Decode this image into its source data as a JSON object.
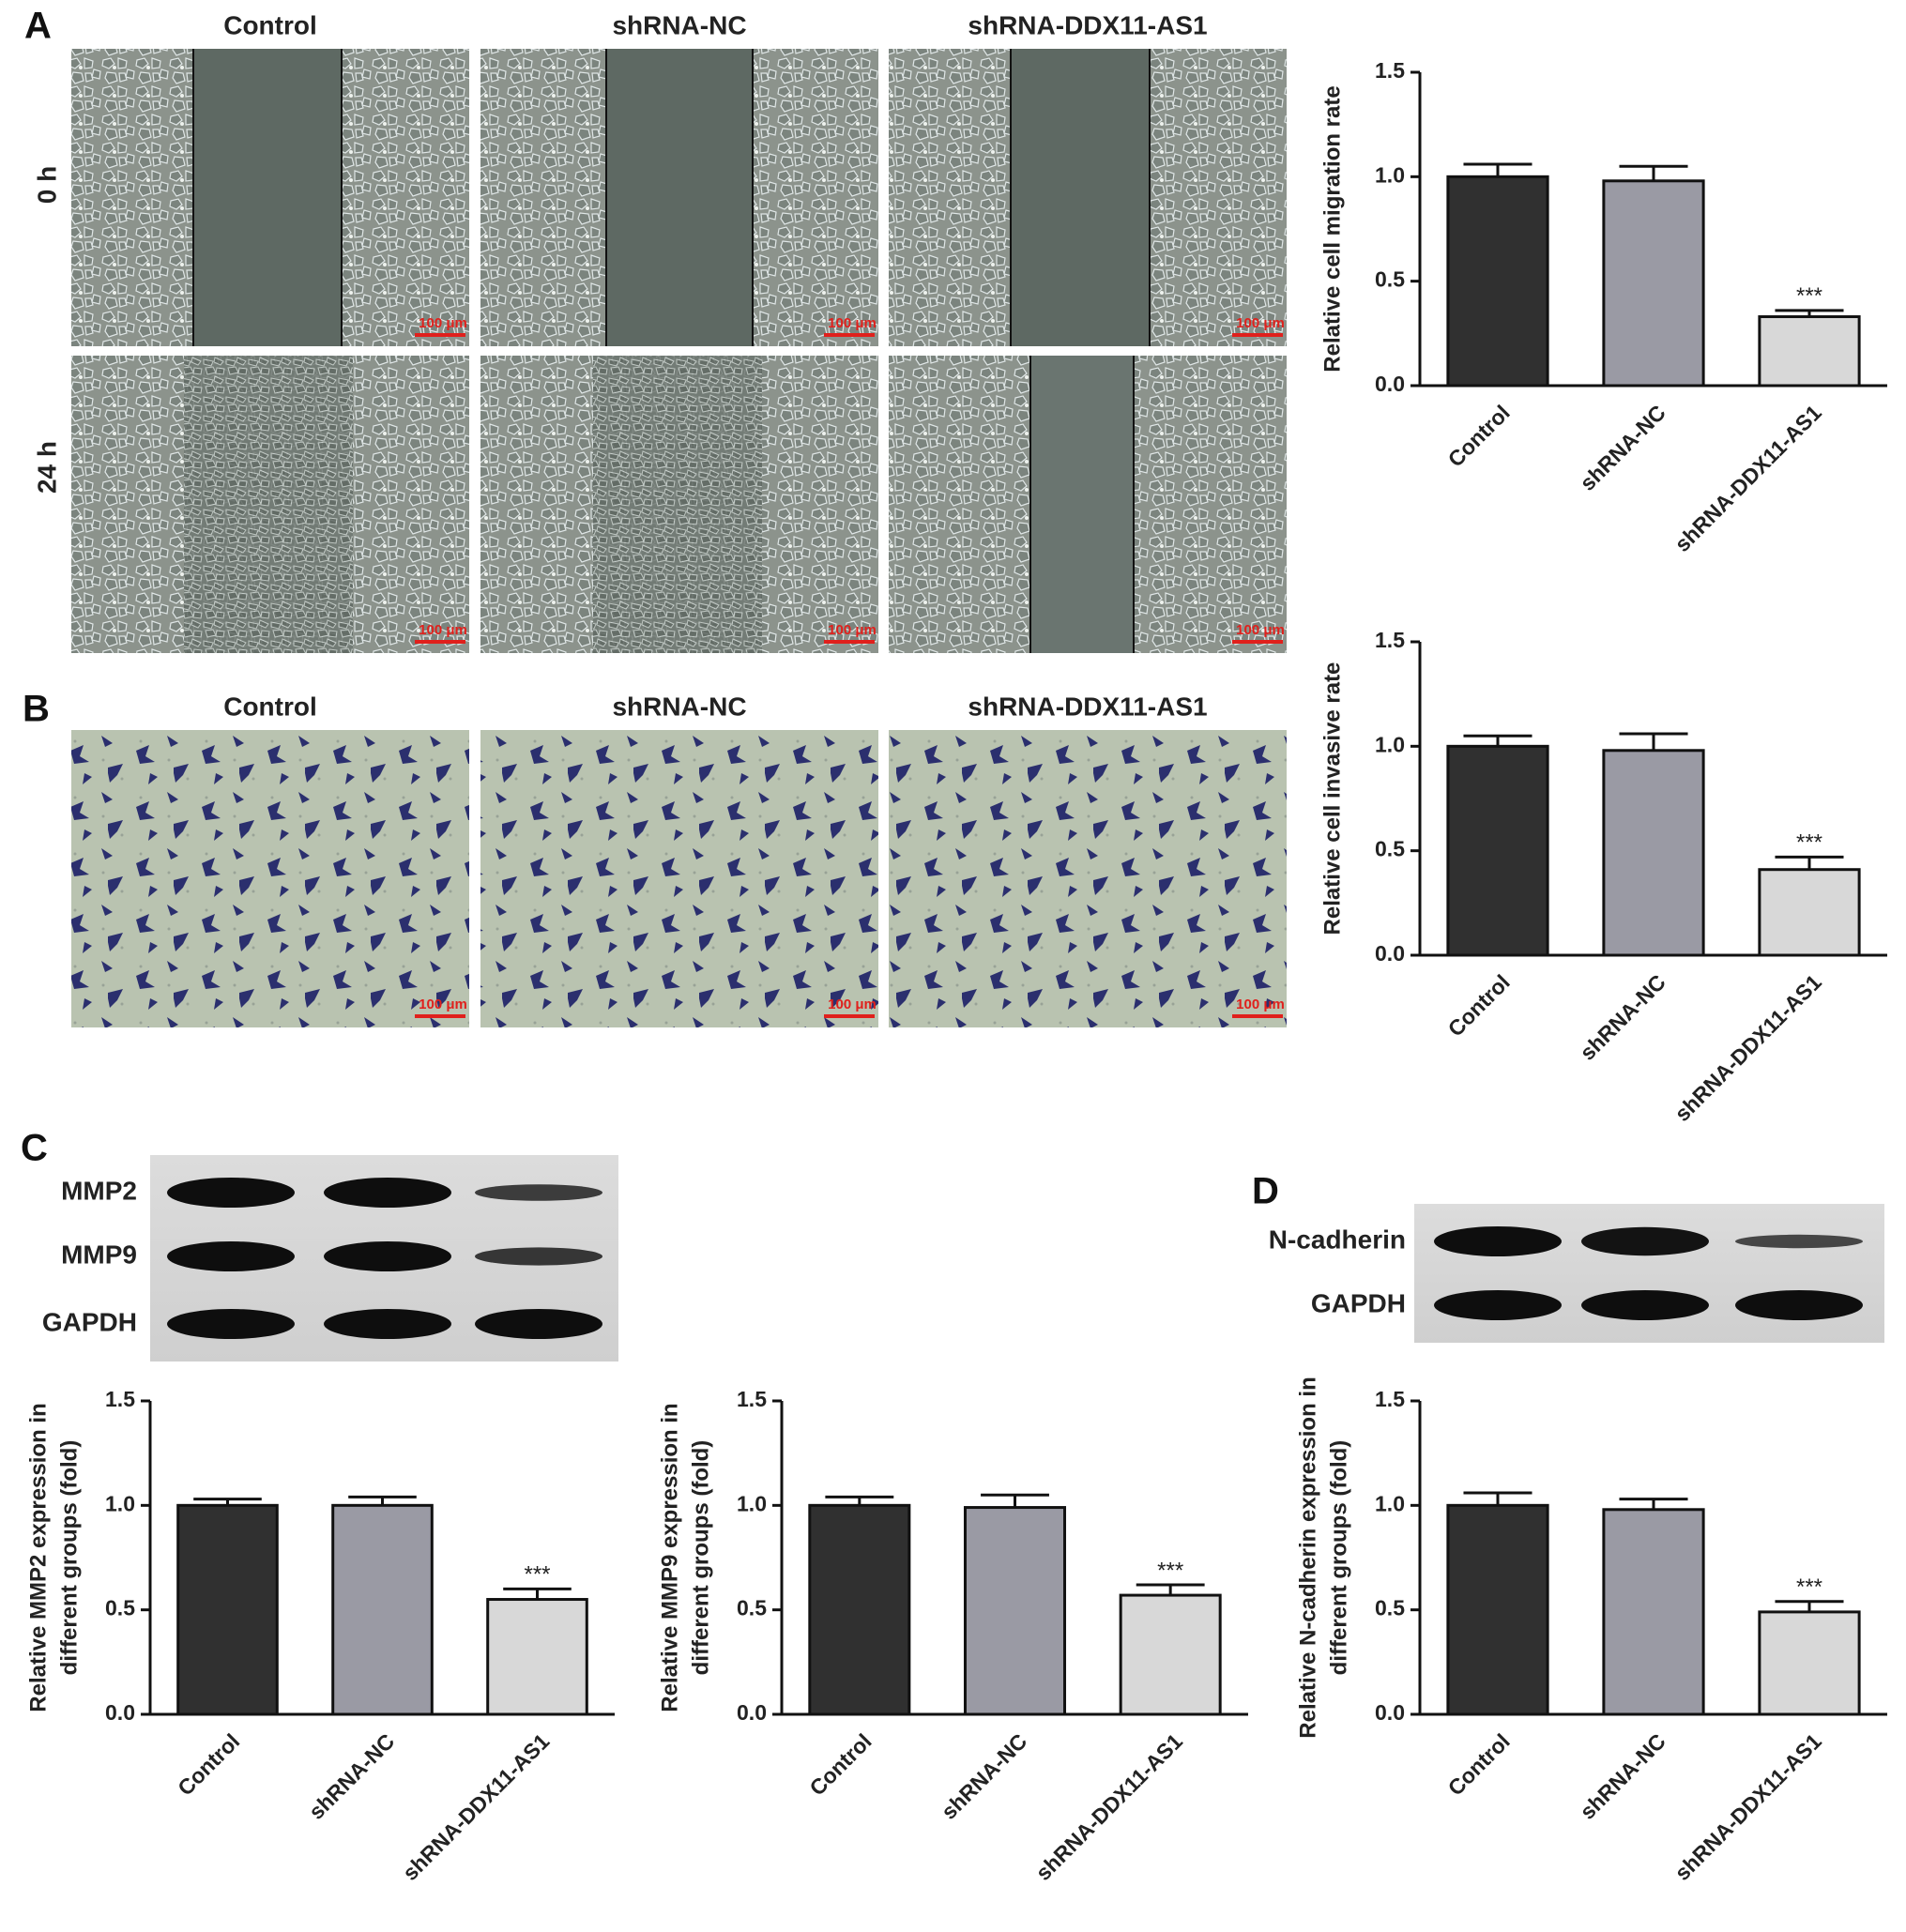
{
  "figure": {
    "panel_labels": [
      "A",
      "B",
      "C",
      "D"
    ],
    "conditions": [
      "Control",
      "shRNA-NC",
      "shRNA-DDX11-AS1"
    ],
    "time_labels": [
      "0 h",
      "24 h"
    ],
    "scale_bar": "100 μm",
    "blots_c": [
      "MMP2",
      "MMP9",
      "GAPDH"
    ],
    "blots_d": [
      "N-cadherin",
      "GAPDH"
    ]
  },
  "chart_data": [
    {
      "type": "bar",
      "ylabel": [
        "Relative cell migration rate"
      ],
      "categories": [
        "Control",
        "shRNA-NC",
        "shRNA-DDX11-AS1"
      ],
      "values": [
        1.0,
        0.98,
        0.33
      ],
      "errors": [
        0.06,
        0.07,
        0.03
      ],
      "colors": [
        "#303030",
        "#9a9aa4",
        "#d8d8d8"
      ],
      "annotations": [
        null,
        null,
        "***"
      ],
      "ylim": [
        0,
        1.5
      ],
      "yticks": [
        {
          "value": 0,
          "label": "0.0"
        },
        {
          "value": 0.5,
          "label": "0.5"
        },
        {
          "value": 1,
          "label": "1.0"
        },
        {
          "value": 1.5,
          "label": "1.5"
        }
      ]
    },
    {
      "type": "bar",
      "ylabel": [
        "Relative cell invasive rate"
      ],
      "categories": [
        "Control",
        "shRNA-NC",
        "shRNA-DDX11-AS1"
      ],
      "values": [
        1.0,
        0.98,
        0.41
      ],
      "errors": [
        0.05,
        0.08,
        0.06
      ],
      "colors": [
        "#303030",
        "#9a9aa4",
        "#d8d8d8"
      ],
      "annotations": [
        null,
        null,
        "***"
      ],
      "ylim": [
        0,
        1.5
      ],
      "yticks": [
        {
          "value": 0,
          "label": "0.0"
        },
        {
          "value": 0.5,
          "label": "0.5"
        },
        {
          "value": 1,
          "label": "1.0"
        },
        {
          "value": 1.5,
          "label": "1.5"
        }
      ]
    },
    {
      "type": "bar",
      "ylabel": [
        "Relative MMP2 expression in",
        "different groups (fold)"
      ],
      "categories": [
        "Control",
        "shRNA-NC",
        "shRNA-DDX11-AS1"
      ],
      "values": [
        1.0,
        1.0,
        0.55
      ],
      "errors": [
        0.03,
        0.04,
        0.05
      ],
      "colors": [
        "#303030",
        "#9a9aa4",
        "#d8d8d8"
      ],
      "annotations": [
        null,
        null,
        "***"
      ],
      "ylim": [
        0,
        1.5
      ],
      "yticks": [
        {
          "value": 0,
          "label": "0.0"
        },
        {
          "value": 0.5,
          "label": "0.5"
        },
        {
          "value": 1,
          "label": "1.0"
        },
        {
          "value": 1.5,
          "label": "1.5"
        }
      ]
    },
    {
      "type": "bar",
      "ylabel": [
        "Relative MMP9 expression in",
        "different groups (fold)"
      ],
      "categories": [
        "Control",
        "shRNA-NC",
        "shRNA-DDX11-AS1"
      ],
      "values": [
        1.0,
        0.99,
        0.57
      ],
      "errors": [
        0.04,
        0.06,
        0.05
      ],
      "colors": [
        "#303030",
        "#9a9aa4",
        "#d8d8d8"
      ],
      "annotations": [
        null,
        null,
        "***"
      ],
      "ylim": [
        0,
        1.5
      ],
      "yticks": [
        {
          "value": 0,
          "label": "0.0"
        },
        {
          "value": 0.5,
          "label": "0.5"
        },
        {
          "value": 1,
          "label": "1.0"
        },
        {
          "value": 1.5,
          "label": "1.5"
        }
      ]
    },
    {
      "type": "bar",
      "ylabel": [
        "Relative N-cadherin expression in",
        "different groups (fold)"
      ],
      "categories": [
        "Control",
        "shRNA-NC",
        "shRNA-DDX11-AS1"
      ],
      "values": [
        1.0,
        0.98,
        0.49
      ],
      "errors": [
        0.06,
        0.05,
        0.05
      ],
      "colors": [
        "#303030",
        "#9a9aa4",
        "#d8d8d8"
      ],
      "annotations": [
        null,
        null,
        "***"
      ],
      "ylim": [
        0,
        1.5
      ],
      "yticks": [
        {
          "value": 0,
          "label": "0.0"
        },
        {
          "value": 0.5,
          "label": "0.5"
        },
        {
          "value": 1,
          "label": "1.0"
        },
        {
          "value": 1.5,
          "label": "1.5"
        }
      ]
    }
  ]
}
